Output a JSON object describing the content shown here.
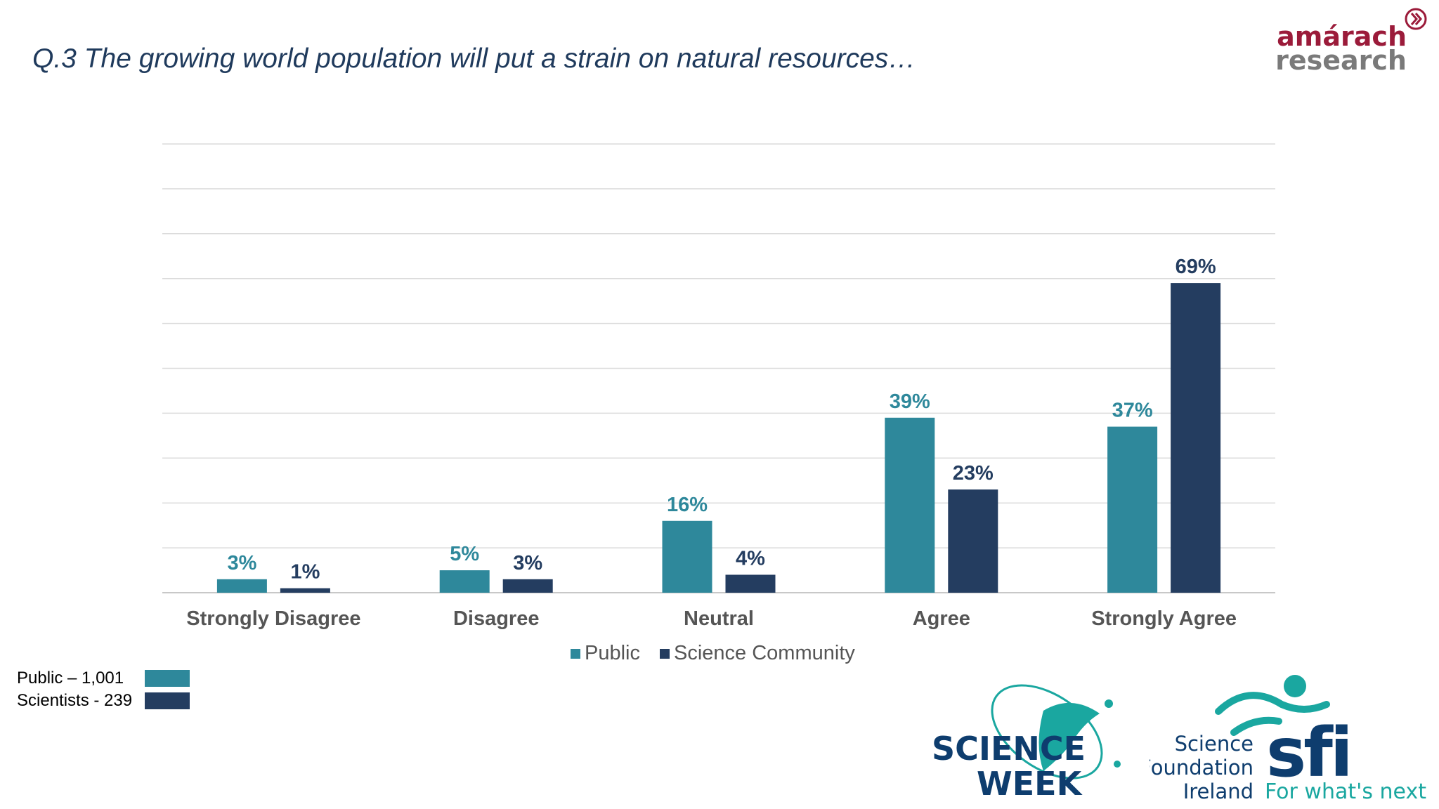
{
  "slide": {
    "title": "Q.3 The growing world population will put a strain on natural resources…"
  },
  "brand": {
    "name_line1": "amárach",
    "name_line2": "research",
    "color_primary": "#9b1b3a",
    "color_secondary": "#7a7a7a"
  },
  "chart_data": {
    "type": "bar",
    "categories": [
      "Strongly Disagree",
      "Disagree",
      "Neutral",
      "Agree",
      "Strongly Agree"
    ],
    "series": [
      {
        "name": "Public",
        "values": [
          3,
          5,
          16,
          39,
          37
        ],
        "labels": [
          "3%",
          "5%",
          "16%",
          "39%",
          "37%"
        ],
        "color": "#2e889b"
      },
      {
        "name": "Science Community",
        "values": [
          1,
          3,
          4,
          23,
          69
        ],
        "labels": [
          "1%",
          "3%",
          "4%",
          "23%",
          "69%"
        ],
        "color": "#243d60"
      }
    ],
    "ylim": [
      0,
      100
    ],
    "grid": true,
    "legend": "bottom",
    "xlabel": "",
    "ylabel": ""
  },
  "sample_sizes": [
    {
      "label": "Public – 1,001",
      "color": "#2e889b"
    },
    {
      "label": "Scientists - 239",
      "color": "#243d60"
    }
  ],
  "logos": {
    "science_week_line1": "SCIENCE",
    "science_week_line2": "WEEK",
    "sfi_text1": "Science",
    "sfi_text2": "Foundation",
    "sfi_text3": "Ireland",
    "sfi_mark": "sfi",
    "sfi_tagline": "For what's next",
    "navy": "#0e3d6e",
    "teal": "#1aa7a0"
  }
}
